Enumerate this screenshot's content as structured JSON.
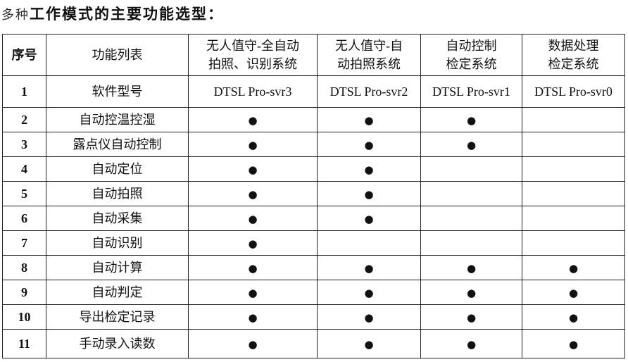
{
  "title": {
    "prefix": "多种",
    "main": "工作模式的主要功能选型："
  },
  "table": {
    "headers": [
      "序号",
      "功能列表",
      "无人值守-全自动\n拍照、识别系统",
      "无人值守-自\n动拍照系统",
      "自动控制\n检定系统",
      "数据处理\n检定系统"
    ],
    "model_row": {
      "no": "1",
      "name": "软件型号",
      "values": [
        "DTSL Pro-svr3",
        "DTSL Pro-svr2",
        "DTSL Pro-svr1",
        "DTSL Pro-svr0"
      ]
    },
    "mark_symbol": "●",
    "rows": [
      {
        "no": "2",
        "name": "自动控温控湿",
        "marks": [
          true,
          true,
          true,
          false
        ]
      },
      {
        "no": "3",
        "name": "露点仪自动控制",
        "marks": [
          true,
          true,
          true,
          false
        ]
      },
      {
        "no": "4",
        "name": "自动定位",
        "marks": [
          true,
          true,
          false,
          false
        ]
      },
      {
        "no": "5",
        "name": "自动拍照",
        "marks": [
          true,
          true,
          false,
          false
        ]
      },
      {
        "no": "6",
        "name": "自动采集",
        "marks": [
          true,
          true,
          false,
          false
        ]
      },
      {
        "no": "7",
        "name": "自动识别",
        "marks": [
          true,
          false,
          false,
          false
        ]
      },
      {
        "no": "8",
        "name": "自动计算",
        "marks": [
          true,
          true,
          true,
          true
        ]
      },
      {
        "no": "9",
        "name": "自动判定",
        "marks": [
          true,
          true,
          true,
          true
        ]
      },
      {
        "no": "10",
        "name": "导出检定记录",
        "marks": [
          true,
          true,
          true,
          true
        ]
      },
      {
        "no": "11",
        "name": "手动录入读数",
        "marks": [
          true,
          true,
          true,
          true
        ]
      }
    ]
  }
}
